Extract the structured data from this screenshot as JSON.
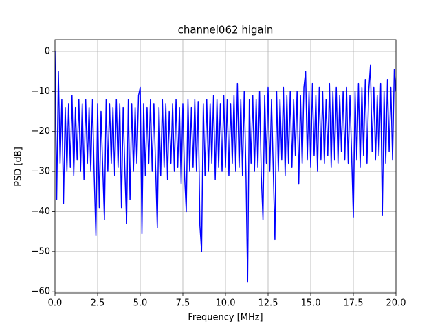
{
  "chart_data": {
    "type": "line",
    "title": "channel062 higain",
    "xlabel": "Frequency [MHz]",
    "ylabel": "PSD [dB]",
    "color": "#0000ff",
    "grid": true,
    "xlim": [
      0,
      20
    ],
    "ylim": [
      -60.3,
      2.9
    ],
    "xticks": [
      {
        "value": 0,
        "label": "0.0"
      },
      2.5,
      {
        "value": 5,
        "label": "5.0"
      },
      7.5,
      {
        "value": 10,
        "label": "10.0"
      },
      12.5,
      {
        "value": 15,
        "label": "15.0"
      },
      17.5,
      {
        "value": 20,
        "label": "20.0"
      }
    ],
    "yticks": [
      0,
      {
        "value": -10,
        "label": "−10"
      },
      {
        "value": -20,
        "label": "−20"
      },
      {
        "value": -30,
        "label": "−30"
      },
      {
        "value": -40,
        "label": "−40"
      },
      {
        "value": -50,
        "label": "−50"
      },
      {
        "value": -60,
        "label": "−60"
      }
    ],
    "x": [
      0,
      0.1,
      0.2,
      0.3,
      0.4,
      0.5,
      0.6,
      0.7,
      0.8,
      0.9,
      1,
      1.1,
      1.2,
      1.3,
      1.4,
      1.5,
      1.6,
      1.7,
      1.8,
      1.9,
      2,
      2.1,
      2.2,
      2.3,
      2.4,
      2.5,
      2.6,
      2.7,
      2.8,
      2.9,
      3,
      3.1,
      3.2,
      3.3,
      3.4,
      3.5,
      3.6,
      3.7,
      3.8,
      3.9,
      4,
      4.1,
      4.2,
      4.3,
      4.4,
      4.5,
      4.6,
      4.7,
      4.8,
      4.9,
      5,
      5.1,
      5.2,
      5.3,
      5.4,
      5.5,
      5.6,
      5.7,
      5.8,
      5.9,
      6,
      6.1,
      6.2,
      6.3,
      6.4,
      6.5,
      6.6,
      6.7,
      6.8,
      6.9,
      7,
      7.1,
      7.2,
      7.3,
      7.4,
      7.5,
      7.6,
      7.7,
      7.8,
      7.9,
      8,
      8.1,
      8.2,
      8.3,
      8.4,
      8.5,
      8.6,
      8.7,
      8.8,
      8.9,
      9,
      9.1,
      9.2,
      9.3,
      9.4,
      9.5,
      9.6,
      9.7,
      9.8,
      9.9,
      10,
      10.1,
      10.2,
      10.3,
      10.4,
      10.5,
      10.6,
      10.7,
      10.8,
      10.9,
      11,
      11.1,
      11.2,
      11.3,
      11.4,
      11.5,
      11.6,
      11.7,
      11.8,
      11.9,
      12,
      12.1,
      12.2,
      12.3,
      12.4,
      12.5,
      12.6,
      12.7,
      12.8,
      12.9,
      13,
      13.1,
      13.2,
      13.3,
      13.4,
      13.5,
      13.6,
      13.7,
      13.8,
      13.9,
      14,
      14.1,
      14.2,
      14.3,
      14.4,
      14.5,
      14.6,
      14.7,
      14.8,
      14.9,
      15,
      15.1,
      15.2,
      15.3,
      15.4,
      15.5,
      15.6,
      15.7,
      15.8,
      15.9,
      16,
      16.1,
      16.2,
      16.3,
      16.4,
      16.5,
      16.6,
      16.7,
      16.8,
      16.9,
      17,
      17.1,
      17.2,
      17.3,
      17.4,
      17.5,
      17.6,
      17.7,
      17.8,
      17.9,
      18,
      18.1,
      18.2,
      18.3,
      18.4,
      18.5,
      18.6,
      18.7,
      18.8,
      18.9,
      19,
      19.1,
      19.2,
      19.3,
      19.4,
      19.5,
      19.6,
      19.7,
      19.8,
      19.9,
      20
    ],
    "values": [
      0,
      -37,
      -5,
      -28,
      -12,
      -38,
      -14,
      -30,
      -13,
      -29,
      -11,
      -31,
      -14,
      -27,
      -12,
      -30,
      -13,
      -32,
      -12,
      -28,
      -14,
      -30,
      -12,
      -31,
      -46,
      -13,
      -39,
      -15,
      -29,
      -42,
      -12,
      -30,
      -13,
      -28,
      -14,
      -31,
      -12,
      -29,
      -13,
      -39,
      -14,
      -30,
      -43,
      -12,
      -37,
      -13,
      -30,
      -14,
      -28,
      -11,
      -9,
      -45.5,
      -13,
      -31,
      -14,
      -28,
      -12,
      -30,
      -13,
      -29,
      -44,
      -14,
      -31,
      -12,
      -29,
      -13,
      -32,
      -15,
      -28,
      -13,
      -30,
      -12,
      -29,
      -14,
      -33,
      -13,
      -31,
      -40,
      -12,
      -30,
      -14,
      -29,
      -12,
      -30,
      -12.5,
      -43.5,
      -50,
      -13,
      -31,
      -12,
      -30,
      -13,
      -28,
      -11,
      -32,
      -12,
      -29,
      -13,
      -30,
      -11,
      -29,
      -12,
      -31,
      -13,
      -28,
      -11,
      -30,
      -8,
      -29,
      -12,
      -31,
      -10,
      -30,
      -57.5,
      -12,
      -28,
      -11,
      -30,
      -12,
      -29,
      -10,
      -31,
      -42,
      -11,
      -28,
      -9,
      -30,
      -12,
      -29,
      -47,
      -10,
      -30,
      -12,
      -27,
      -9,
      -31,
      -11,
      -28,
      -10,
      -29,
      -12,
      -26,
      -10,
      -33,
      -11,
      -28,
      -9,
      -5,
      -27,
      -10,
      -29,
      -8,
      -26,
      -11,
      -30,
      -9,
      -27,
      -10,
      -28,
      -12,
      -26,
      -8,
      -29,
      -10,
      -27,
      -9,
      -28,
      -11,
      -25,
      -10,
      -27,
      -9,
      -28,
      -11,
      -26,
      -41.5,
      -10,
      -27,
      -8,
      -29,
      -9,
      -26,
      -7,
      -28,
      -10,
      -3.5,
      -25,
      -9,
      -27,
      -11,
      -26,
      -8,
      -41,
      -10,
      -28,
      -7,
      -25,
      -9,
      -27,
      -4.5,
      -10
    ]
  }
}
